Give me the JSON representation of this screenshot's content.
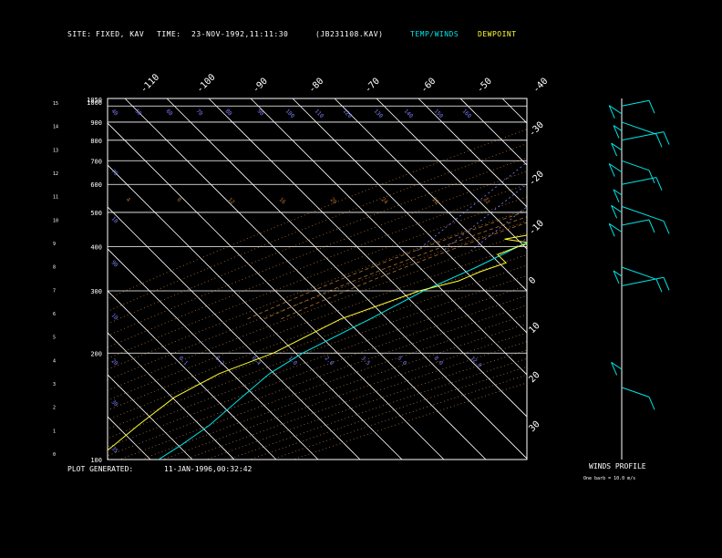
{
  "header": {
    "site_label": "SITE:",
    "site_value": "FIXED, KAV",
    "time_label": "TIME:",
    "time_value": "23-NOV-1992,11:11:30",
    "file_id": "(JB231108.KAV)",
    "legend_temp": "TEMP/WINDS",
    "legend_dew": "DEWPOINT"
  },
  "footer": {
    "plot_generated_label": "PLOT GENERATED:",
    "plot_generated_value": "11-JAN-1996,00:32:42",
    "winds_profile_title": "WINDS PROFILE",
    "winds_profile_note": "One barb = 10.0 m/s"
  },
  "colors": {
    "temp": "#00e5e5",
    "dewpoint": "#ffff33",
    "isotherm": "#ffffff",
    "dry_adiabat": "#b07030",
    "mixing_ratio": "#7f7fff",
    "isobar": "#ffffff"
  },
  "chart_data": {
    "type": "line",
    "pressure_ticks": [
      "100",
      "200",
      "300",
      "400",
      "500",
      "600",
      "700",
      "800",
      "900",
      "1000",
      "1050"
    ],
    "pressure_values": [
      100,
      200,
      300,
      400,
      500,
      600,
      700,
      800,
      900,
      1000,
      1050
    ],
    "km_ticks": [
      "0",
      "1",
      "2",
      "3",
      "4",
      "5",
      "6",
      "7",
      "8",
      "9",
      "10",
      "11",
      "12",
      "13",
      "14",
      "15"
    ],
    "isotherm_labels_top": [
      "-110",
      "-100",
      "-90",
      "-80",
      "-70",
      "-60",
      "-50",
      "-40"
    ],
    "isotherm_labels_right": [
      "-30",
      "-20",
      "-10",
      "0",
      "10",
      "20",
      "30"
    ],
    "potential_temp_labels": [
      "40",
      "50",
      "60",
      "70",
      "80",
      "90",
      "100",
      "110",
      "120",
      "130",
      "140",
      "150",
      "160"
    ],
    "dry_adiabat_labels": [
      "4",
      "8",
      "12",
      "16",
      "20",
      "24",
      "28",
      "32"
    ],
    "mixing_ratio_labels": [
      "0.1",
      "0.2",
      "0.4",
      "1.0",
      "2.0",
      "3.5",
      "5.0",
      "8.0",
      "12.0"
    ],
    "saturation_labels": [
      "10",
      "20",
      "30",
      "40",
      "50",
      "60",
      "70",
      "80"
    ],
    "ylim": [
      1050,
      100
    ],
    "series": [
      {
        "name": "TEMP/WINDS",
        "pressure": [
          1000,
          985,
          970,
          950,
          925,
          900,
          875,
          850,
          800,
          750,
          700,
          650,
          600,
          550,
          500,
          450,
          400,
          350,
          300,
          250,
          200,
          175,
          150,
          125,
          110,
          100
        ],
        "temperature": [
          12,
          13,
          11,
          9,
          8,
          6,
          5,
          3.5,
          0,
          -3,
          -6,
          -8,
          -11,
          -14,
          -18,
          -22,
          -27,
          -32,
          -39,
          -45,
          -53,
          -56,
          -57,
          -58,
          -60,
          -62
        ]
      },
      {
        "name": "DEWPOINT",
        "pressure": [
          1000,
          990,
          975,
          950,
          925,
          900,
          875,
          850,
          825,
          800,
          750,
          700,
          650,
          625,
          610,
          600,
          580,
          550,
          520,
          500,
          470,
          450,
          430,
          420,
          410,
          400,
          380,
          360,
          340,
          320,
          300,
          250,
          200,
          175,
          150,
          125,
          110,
          100
        ],
        "dewpoint": [
          5,
          8,
          9,
          6,
          4,
          3,
          2,
          1,
          0,
          -1,
          -5,
          -7,
          -11,
          -14,
          -16,
          -14,
          -15,
          -16,
          -17,
          -20,
          -21,
          -24,
          -28,
          -32,
          -25,
          -27,
          -30,
          -26,
          -30,
          -33,
          -40,
          -52,
          -60,
          -68,
          -73,
          -75,
          -76,
          -77
        ]
      }
    ],
    "wind_barbs_pressure": [
      160,
      180,
      310,
      330,
      350,
      440,
      460,
      500,
      520,
      560,
      600,
      650,
      700,
      750,
      800,
      850,
      900,
      950,
      1000
    ]
  }
}
